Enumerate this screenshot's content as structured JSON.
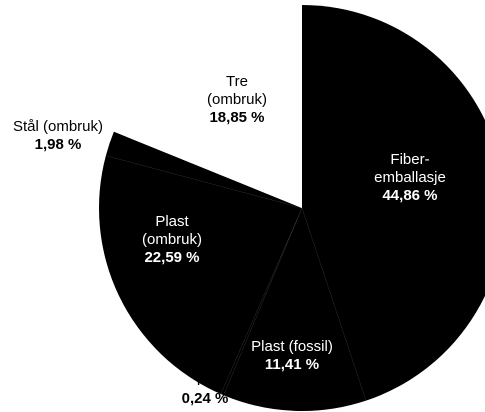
{
  "chart_data": {
    "type": "pie",
    "categories": [
      "Fiber-emballasje",
      "Plast (fossil)",
      "Tre",
      "Plast (ombruk)",
      "Stål (ombruk)",
      "Tre (ombruk)"
    ],
    "values": [
      44.86,
      11.41,
      0.24,
      22.59,
      1.98,
      18.85
    ],
    "value_labels": [
      "44,86 %",
      "11,41 %",
      "0,24 %",
      "22,59 %",
      "1,98 %",
      "18,85 %"
    ],
    "colors": [
      "#000000",
      "#000000",
      "#000000",
      "#000000",
      "#000000",
      "#ffffff"
    ]
  }
}
